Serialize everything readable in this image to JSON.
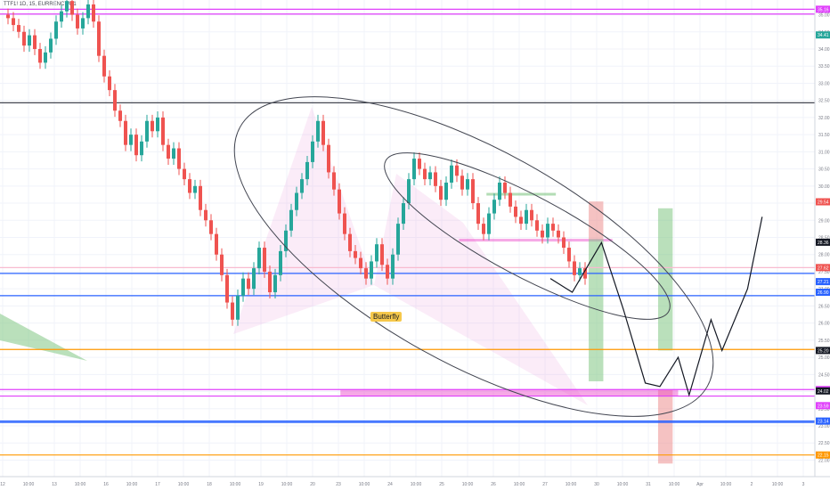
{
  "header": {
    "symbol": "TTF1! 1D, 15, EURRENCY/D1"
  },
  "pattern_label": "Butterfly",
  "colors": {
    "up": "#26a69a",
    "down": "#ef5350",
    "magenta": "#e040fb",
    "blue": "#2962ff",
    "orange": "#ff9800",
    "pink_zone": "#f48fb1",
    "green_zone": "#a5d6a7",
    "red_zone": "#ef9a9a"
  },
  "chart_data": {
    "type": "candlestick",
    "x_ticks": [
      "12",
      "10:00",
      "13",
      "10:00",
      "16",
      "10:00",
      "17",
      "10:00",
      "18",
      "10:00",
      "19",
      "10:00",
      "20",
      "23",
      "10:00",
      "24",
      "10:00",
      "25",
      "10:00",
      "26",
      "10:00",
      "27",
      "10:00",
      "30",
      "10:00",
      "31",
      "10:00",
      "Apr",
      "10:00",
      "2",
      "10:00",
      "3"
    ],
    "y_ticks": [
      "35.00",
      "34.50",
      "34.00",
      "33.50",
      "33.00",
      "32.50",
      "32.00",
      "31.50",
      "31.00",
      "30.50",
      "30.00",
      "29.50",
      "29.00",
      "28.50",
      "28.00",
      "27.50",
      "27.00",
      "26.50",
      "26.00",
      "25.50",
      "25.00",
      "24.50",
      "24.00",
      "23.50",
      "23.00",
      "22.50",
      "22.00"
    ],
    "ylim": [
      21.7,
      35.3
    ],
    "price_badges": [
      {
        "value": "35.16",
        "color": "#e040fb"
      },
      {
        "value": "34.41",
        "color": "#26a69a"
      },
      {
        "value": "29.54",
        "color": "#ef5350"
      },
      {
        "value": "28.36",
        "color": "#131722"
      },
      {
        "value": "27.62",
        "color": "#ef5350"
      },
      {
        "value": "27.21",
        "color": "#2962ff"
      },
      {
        "value": "26.90",
        "color": "#2962ff"
      },
      {
        "value": "25.20",
        "color": "#131722"
      },
      {
        "value": "24.06",
        "color": "#e040fb"
      },
      {
        "value": "24.02",
        "color": "#131722"
      },
      {
        "value": "23.59",
        "color": "#e040fb"
      },
      {
        "value": "23.14",
        "color": "#2962ff"
      },
      {
        "value": "22.15",
        "color": "#ff9800"
      }
    ],
    "horizontal_lines": [
      {
        "value": 35.16,
        "color": "#e040fb"
      },
      {
        "value": 35.02,
        "color": "#e040fb"
      },
      {
        "value": 32.43,
        "color": "#434651"
      },
      {
        "value": 27.62,
        "color": "#f8bbd0"
      },
      {
        "value": 27.45,
        "color": "#2962ff"
      },
      {
        "value": 26.8,
        "color": "#2962ff"
      },
      {
        "value": 25.23,
        "color": "#ff9800"
      },
      {
        "value": 24.06,
        "color": "#e040fb"
      },
      {
        "value": 23.87,
        "color": "#e040fb"
      },
      {
        "value": 23.14,
        "color": "#2962ff"
      },
      {
        "value": 23.1,
        "color": "#2962ff"
      },
      {
        "value": 22.15,
        "color": "#ff9800"
      }
    ],
    "close_path": [
      35.0,
      34.9,
      34.7,
      34.5,
      34.1,
      34.4,
      34.0,
      33.6,
      33.9,
      34.3,
      34.8,
      35.1,
      35.4,
      35.0,
      34.6,
      34.9,
      35.3,
      34.8,
      33.8,
      33.2,
      32.8,
      32.2,
      31.9,
      31.2,
      31.5,
      30.9,
      31.3,
      31.9,
      31.6,
      32.0,
      31.2,
      30.8,
      31.1,
      30.5,
      30.2,
      29.8,
      30.0,
      29.3,
      29.0,
      28.6,
      28.0,
      27.4,
      26.6,
      26.1,
      26.8,
      27.3,
      27.0,
      27.6,
      28.2,
      27.5,
      26.9,
      27.4,
      28.1,
      28.7,
      29.3,
      29.8,
      30.2,
      30.7,
      31.3,
      31.9,
      31.2,
      30.4,
      29.9,
      29.2,
      28.6,
      28.1,
      27.9,
      27.6,
      27.3,
      27.8,
      28.3,
      27.7,
      27.3,
      28.0,
      28.9,
      29.5,
      30.2,
      30.8,
      30.5,
      30.2,
      30.4,
      30.0,
      29.6,
      30.1,
      30.6,
      30.3,
      29.9,
      30.2,
      29.5,
      28.9,
      28.6,
      29.2,
      29.6,
      30.1,
      29.8,
      29.4,
      29.1,
      28.9,
      29.3,
      29.0,
      28.7,
      28.5,
      28.9,
      28.7,
      28.5,
      28.2,
      27.8,
      27.4,
      27.6,
      27.3
    ],
    "projection_path": [
      {
        "x": 30.0,
        "y": 27.3
      },
      {
        "x": 31.2,
        "y": 26.9
      },
      {
        "x": 32.8,
        "y": 28.35
      },
      {
        "x": 34.0,
        "y": 26.4
      },
      {
        "x": 35.2,
        "y": 24.25
      },
      {
        "x": 36.0,
        "y": 24.15
      },
      {
        "x": 37.0,
        "y": 25.0
      },
      {
        "x": 37.6,
        "y": 23.9
      },
      {
        "x": 38.8,
        "y": 26.1
      },
      {
        "x": 39.4,
        "y": 25.2
      },
      {
        "x": 40.8,
        "y": 27.0
      },
      {
        "x": 41.6,
        "y": 29.1
      }
    ],
    "zones": [
      {
        "kind": "pink",
        "x0": 25.0,
        "x1": 33.4,
        "y0": 28.38,
        "y1": 28.46
      },
      {
        "kind": "green-line",
        "x0": 26.5,
        "x1": 30.3,
        "y0": 29.75,
        "y1": 29.8
      },
      {
        "kind": "red",
        "x0": 32.1,
        "x1": 32.9,
        "y0": 28.45,
        "y1": 29.55
      },
      {
        "kind": "green",
        "x0": 32.1,
        "x1": 32.9,
        "y0": 24.3,
        "y1": 28.45
      },
      {
        "kind": "green",
        "x0": 35.9,
        "x1": 36.7,
        "y0": 25.2,
        "y1": 29.35
      },
      {
        "kind": "red",
        "x0": 35.9,
        "x1": 36.7,
        "y0": 21.9,
        "y1": 24.05
      },
      {
        "kind": "pink",
        "x0": 18.5,
        "x1": 37.0,
        "y0": 23.87,
        "y1": 24.06
      }
    ]
  }
}
